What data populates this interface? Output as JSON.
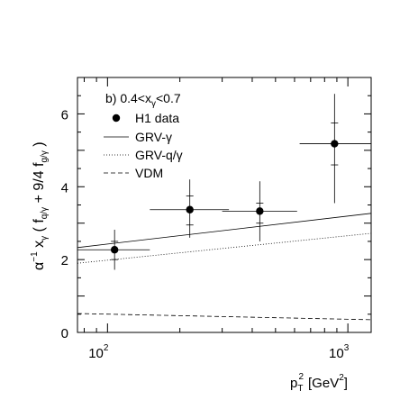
{
  "chart_data": {
    "type": "scatter",
    "panel_label": "b) 0.4<x",
    "panel_label_sub": "γ",
    "panel_label_tail": "<0.7",
    "xlabel": "p",
    "xlabel_sub": "T",
    "xlabel_sup": "2",
    "xlabel_unit": "[GeV",
    "xlabel_unit_sup": "2",
    "xlabel_unit_close": "]",
    "ylabel": "α⁻¹ xγ ( fq/γ + 9/4 fg/γ )",
    "xscale": "log",
    "xlim": [
      75,
      1250
    ],
    "ylim": [
      0,
      7
    ],
    "x_ticks": [
      100,
      1000
    ],
    "x_tick_labels": [
      "10",
      "10"
    ],
    "x_tick_sups": [
      "2",
      "3"
    ],
    "y_ticks": [
      0,
      2,
      4,
      6
    ],
    "y_tick_labels": [
      "0",
      "2",
      "4",
      "6"
    ],
    "legend": [
      {
        "label": "H1 data",
        "style": "marker"
      },
      {
        "label": "GRV-γ",
        "style": "solid"
      },
      {
        "label": "GRV-q/γ",
        "style": "dotted"
      },
      {
        "label": "VDM",
        "style": "dashed"
      }
    ],
    "data_points": [
      {
        "x": 107,
        "y": 2.27,
        "xerr": [
          75,
          150
        ],
        "yerr_stat": [
          2.0,
          2.5
        ],
        "yerr_tot": [
          1.72,
          2.82
        ]
      },
      {
        "x": 220,
        "y": 3.37,
        "xerr": [
          150,
          320
        ],
        "yerr_stat": [
          2.95,
          3.75
        ],
        "yerr_tot": [
          2.6,
          4.2
        ]
      },
      {
        "x": 430,
        "y": 3.33,
        "xerr": [
          300,
          615
        ],
        "yerr_stat": [
          3.0,
          3.55
        ],
        "yerr_tot": [
          2.5,
          4.15
        ]
      },
      {
        "x": 880,
        "y": 5.18,
        "xerr": [
          630,
          1250
        ],
        "yerr_stat": [
          4.6,
          5.75
        ],
        "yerr_tot": [
          3.55,
          6.55
        ]
      }
    ],
    "series": [
      {
        "style": "solid",
        "x": [
          75,
          1250
        ],
        "y": [
          2.33,
          3.27
        ]
      },
      {
        "style": "dotted",
        "x": [
          75,
          1250
        ],
        "y": [
          1.9,
          2.72
        ]
      },
      {
        "style": "dashed",
        "x": [
          75,
          1250
        ],
        "y": [
          0.52,
          0.35
        ]
      }
    ]
  }
}
